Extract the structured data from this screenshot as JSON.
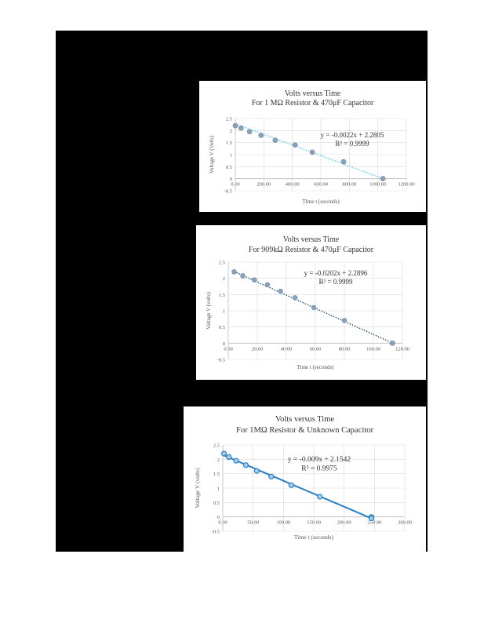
{
  "page": {
    "background": "#ffffff",
    "block_color": "#000000"
  },
  "chart_data": [
    {
      "type": "scatter",
      "title": "Volts versus Time",
      "subtitle": "For 1 MΩ Resistor & 470μF Capacitor",
      "xlabel": "TIme t (seconds)",
      "ylabel": "Voltage V (Volts)",
      "xlim": [
        0,
        1200
      ],
      "ylim": [
        -0.5,
        2.5
      ],
      "x_ticks": [
        "0.00",
        "200.00",
        "400.00",
        "600.00",
        "800.00",
        "1000.00",
        "1200.00"
      ],
      "y_ticks": [
        "-0.5",
        "0",
        "0.5",
        "1",
        "1.5",
        "2",
        "2.5"
      ],
      "grid": true,
      "series": [
        {
          "x": [
            0,
            40,
            100,
            180,
            280,
            420,
            540,
            760
          ],
          "y": [
            2.2,
            2.1,
            1.95,
            1.8,
            1.6,
            1.4,
            1.1,
            0.7
          ],
          "color": "#8aa0b8",
          "trend_color": "#5bc8e8",
          "trend_style": "dotted"
        }
      ],
      "trendline": {
        "slope": -0.0022,
        "intercept": 2.2805,
        "x_end": 1036
      },
      "equation": "y = -0.0022x + 2.2805",
      "r2": "R² = 0.9999"
    },
    {
      "type": "scatter",
      "title": "Volts versus Time",
      "subtitle": "For 909kΩ Resistor & 470μF Capacitor",
      "xlabel": "Time t (seconds)",
      "ylabel": "Voltage V (volts)",
      "xlim": [
        0,
        120
      ],
      "ylim": [
        -0.5,
        2.5
      ],
      "x_ticks": [
        "0.00",
        "20.00",
        "40.00",
        "60.00",
        "80.00",
        "100.00",
        "120.00"
      ],
      "y_ticks": [
        "-0.5",
        "0",
        "0.5",
        "1",
        "1.5",
        "2",
        "2.5"
      ],
      "grid": true,
      "series": [
        {
          "x": [
            4,
            10,
            18,
            27,
            36,
            46,
            59,
            80,
            113
          ],
          "y": [
            2.2,
            2.08,
            1.95,
            1.8,
            1.6,
            1.4,
            1.1,
            0.7,
            0.0
          ],
          "color": "#8aa0b8",
          "trend_color": "#1f4e79",
          "trend_style": "dotted"
        }
      ],
      "trendline": {
        "slope": -0.0202,
        "intercept": 2.2896,
        "x_end": 113.3
      },
      "equation": "y = -0.0202x + 2.2896",
      "r2": "R² = 0.9999"
    },
    {
      "type": "line",
      "title": "Volts versus Time",
      "subtitle": "For 1MΩ Resistor & Unknown Capacitor",
      "xlabel": "Time t (seconds)",
      "ylabel": "Voltage V (volts)",
      "xlim": [
        0,
        300
      ],
      "ylim": [
        -0.5,
        2.5
      ],
      "x_ticks": [
        "0.00",
        "50.00",
        "100.00",
        "150.00",
        "200.00",
        "250.00",
        "300.00"
      ],
      "y_ticks": [
        "-0.5",
        "0",
        "0.5",
        "1",
        "1.5",
        "2",
        "2.5"
      ],
      "grid": true,
      "series": [
        {
          "x": [
            2,
            10,
            22,
            38,
            56,
            80,
            113,
            160,
            245
          ],
          "y": [
            2.2,
            2.08,
            1.95,
            1.8,
            1.6,
            1.4,
            1.1,
            0.7,
            0.0
          ],
          "color": "#2a7fc0",
          "trend_color": "#2a7fc0",
          "trend_style": "solid"
        }
      ],
      "trendline": {
        "slope": -0.009,
        "intercept": 2.1542,
        "x_end": 245
      },
      "equation": "y = -0.009x + 2.1542",
      "r2": "R² = 0.9975"
    }
  ]
}
